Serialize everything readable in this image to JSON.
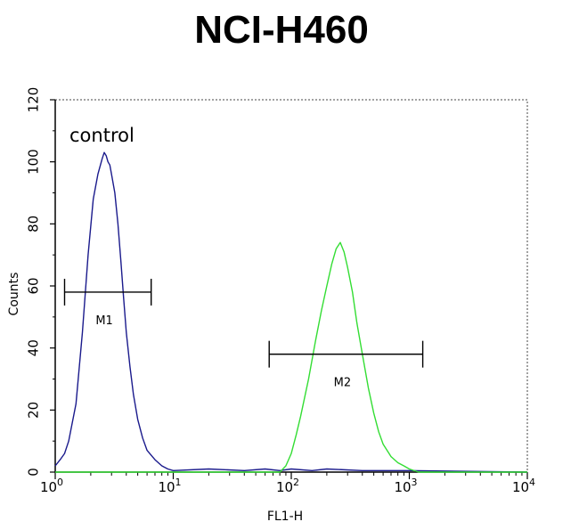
{
  "chart_data": {
    "type": "line",
    "title": "NCI-H460",
    "xlabel": "FL1-H",
    "ylabel": "Counts",
    "xscale": "log",
    "xlim": [
      1,
      10000
    ],
    "ylim": [
      0,
      120
    ],
    "xticks": [
      {
        "value": 1,
        "base": "10",
        "exp": "0"
      },
      {
        "value": 10,
        "base": "10",
        "exp": "1"
      },
      {
        "value": 100,
        "base": "10",
        "exp": "2"
      },
      {
        "value": 1000,
        "base": "10",
        "exp": "3"
      },
      {
        "value": 10000,
        "base": "10",
        "exp": "4"
      }
    ],
    "yticks": [
      "0",
      "20",
      "40",
      "60",
      "80",
      "100",
      "120"
    ],
    "grid": false,
    "annotation": "control",
    "series": [
      {
        "color": "#1a1a8c",
        "x": [
          1.0,
          1.1,
          1.2,
          1.3,
          1.5,
          1.7,
          1.9,
          2.1,
          2.3,
          2.5,
          2.6,
          2.7,
          2.8,
          2.9,
          3.0,
          3.2,
          3.4,
          3.6,
          3.8,
          4.0,
          4.3,
          4.6,
          5.0,
          5.5,
          6.0,
          7.0,
          8.0,
          9.0,
          10,
          20,
          40,
          60,
          80,
          100,
          150,
          200,
          400,
          1000,
          10000
        ],
        "y": [
          2,
          4,
          6,
          10,
          22,
          45,
          70,
          88,
          96,
          101,
          103,
          102,
          100,
          99,
          96,
          90,
          80,
          68,
          56,
          45,
          34,
          25,
          17,
          11,
          7,
          4,
          2,
          1,
          0.5,
          1,
          0.5,
          1,
          0.5,
          1,
          0.5,
          1,
          0.5,
          0.5,
          0
        ]
      },
      {
        "color": "#33dd33",
        "x": [
          1,
          50,
          80,
          90,
          100,
          110,
          120,
          140,
          160,
          180,
          200,
          220,
          240,
          260,
          280,
          300,
          330,
          360,
          400,
          450,
          500,
          550,
          600,
          700,
          800,
          900,
          1000,
          1200,
          10000
        ],
        "y": [
          0,
          0,
          0,
          2,
          6,
          12,
          18,
          30,
          42,
          52,
          60,
          67,
          72,
          74,
          71,
          66,
          58,
          48,
          38,
          27,
          19,
          13,
          9,
          5,
          3,
          2,
          1,
          0,
          0
        ]
      }
    ],
    "markers": [
      {
        "label": "M1",
        "x_start": 1.2,
        "x_end": 6.5,
        "y": 58
      },
      {
        "label": "M2",
        "x_start": 65,
        "x_end": 1300,
        "y": 38
      }
    ]
  }
}
